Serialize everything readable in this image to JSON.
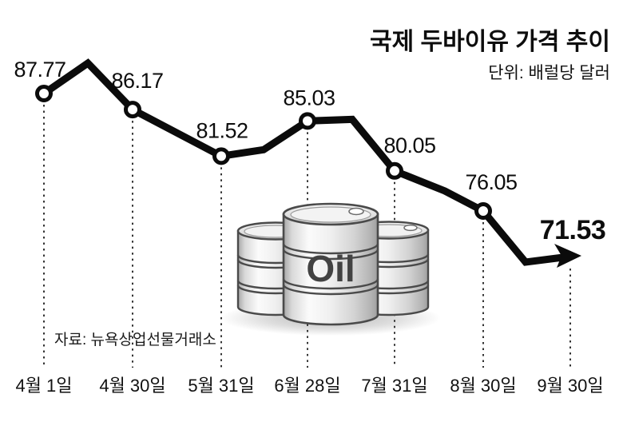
{
  "chart_data": {
    "type": "line",
    "title": "국제 두바이유 가격 추이",
    "unit_label": "단위: 배럴당 달러",
    "source": "자료: 뉴욕상업선물거래소",
    "categories": [
      "4월 1일",
      "4월 30일",
      "5월 31일",
      "6월 28일",
      "7월 31일",
      "8월 30일",
      "9월 30일"
    ],
    "values": [
      87.77,
      86.17,
      81.52,
      85.03,
      80.05,
      76.05,
      71.53
    ],
    "value_label_texts": [
      "87.77",
      "86.17",
      "81.52",
      "85.03",
      "80.05",
      "76.05",
      "71.53"
    ],
    "emphasized_value": "71.53",
    "ylim": [
      70,
      92
    ],
    "grid": "dotted-vertical",
    "legend": "none",
    "line_color": "#0b0b0b",
    "marker_style": "open-circle",
    "last_point_style": "arrow",
    "illustration_label": "Oil"
  }
}
